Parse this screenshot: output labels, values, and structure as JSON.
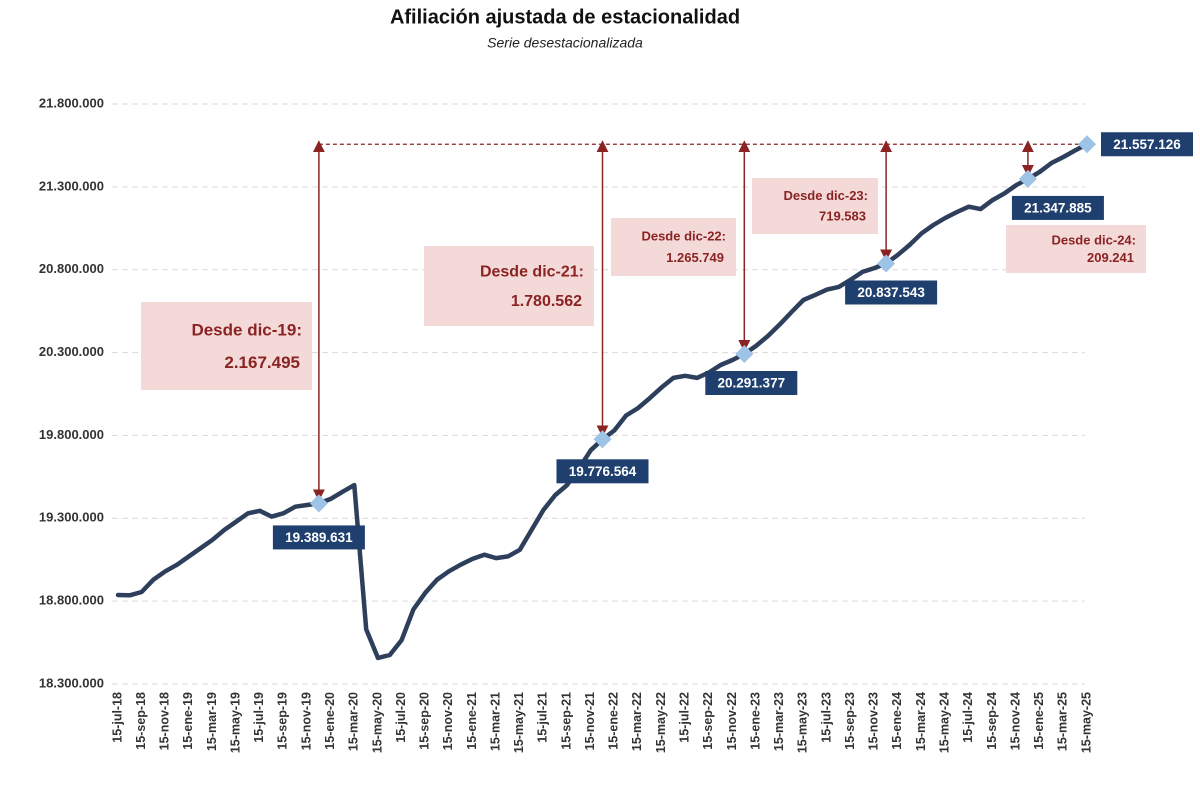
{
  "chart_data": {
    "type": "line",
    "title": "Afiliación ajustada de estacionalidad",
    "subtitle": "Serie desestacionalizada",
    "categories": [
      "15-jul-18",
      null,
      "15-sep-18",
      null,
      "15-nov-18",
      null,
      "15-ene-19",
      null,
      "15-mar-19",
      null,
      "15-may-19",
      null,
      "15-jul-19",
      null,
      "15-sep-19",
      null,
      "15-nov-19",
      null,
      "15-ene-20",
      null,
      "15-mar-20",
      null,
      "15-may-20",
      null,
      "15-jul-20",
      null,
      "15-sep-20",
      null,
      "15-nov-20",
      null,
      "15-ene-21",
      null,
      "15-mar-21",
      null,
      "15-may-21",
      null,
      "15-jul-21",
      null,
      "15-sep-21",
      null,
      "15-nov-21",
      null,
      "15-ene-22",
      null,
      "15-mar-22",
      null,
      "15-may-22",
      null,
      "15-jul-22",
      null,
      "15-sep-22",
      null,
      "15-nov-22",
      null,
      "15-ene-23",
      null,
      "15-mar-23",
      null,
      "15-may-23",
      null,
      "15-jul-23",
      null,
      "15-sep-23",
      null,
      "15-nov-23",
      null,
      "15-ene-24",
      null,
      "15-mar-24",
      null,
      "15-may-24",
      null,
      "15-jul-24",
      null,
      "15-sep-24",
      null,
      "15-nov-24",
      null,
      "15-ene-25",
      null,
      "15-mar-25",
      null,
      "15-may-25"
    ],
    "values": [
      18837000,
      18835000,
      18855000,
      18930000,
      18980000,
      19020000,
      19070000,
      19120000,
      19170000,
      19230000,
      19280000,
      19330000,
      19345000,
      19310000,
      19330000,
      19370000,
      19380000,
      19389631,
      19417000,
      19460000,
      19500000,
      18630000,
      18457000,
      18475000,
      18565000,
      18750000,
      18850000,
      18930000,
      18980000,
      19020000,
      19055000,
      19080000,
      19060000,
      19070000,
      19110000,
      19230000,
      19350000,
      19440000,
      19500000,
      19600000,
      19710000,
      19776564,
      19830000,
      19920000,
      19965000,
      20025000,
      20090000,
      20147000,
      20160000,
      20147000,
      20180000,
      20225000,
      20255000,
      20291377,
      20340000,
      20400000,
      20470000,
      20545000,
      20617000,
      20648000,
      20680000,
      20696000,
      20740000,
      20787000,
      20810000,
      20837543,
      20890000,
      20950000,
      21020000,
      21070000,
      21112000,
      21148000,
      21180000,
      21166000,
      21220000,
      21260000,
      21310000,
      21347885,
      21390000,
      21444000,
      21480000,
      21520000,
      21557126
    ],
    "value_labels": [
      null,
      null,
      null,
      null,
      null,
      null,
      null,
      null,
      null,
      null,
      null,
      null,
      null,
      null,
      null,
      null,
      null,
      "19.389.631",
      null,
      null,
      null,
      null,
      null,
      null,
      null,
      null,
      null,
      null,
      null,
      null,
      null,
      null,
      null,
      null,
      null,
      null,
      null,
      null,
      null,
      null,
      null,
      "19.776.564",
      null,
      null,
      null,
      null,
      null,
      null,
      null,
      null,
      null,
      null,
      null,
      "20.291.377",
      null,
      null,
      null,
      null,
      null,
      null,
      null,
      null,
      null,
      null,
      null,
      "20.837.543",
      null,
      null,
      null,
      null,
      null,
      null,
      null,
      null,
      null,
      null,
      null,
      "21.347.885",
      null,
      null,
      null,
      null,
      "21.557.126"
    ],
    "color": "#2e3f5c",
    "marker_color": "#9dc3e6",
    "label_color": "#1f3f6e",
    "annotation_color": "#8b2323",
    "annotations": [
      {
        "title": "Desde dic-19:",
        "value": "2.167.495"
      },
      {
        "title": "Desde dic-21:",
        "value": "1.780.562"
      },
      {
        "title": "Desde dic-22:",
        "value": "1.265.749"
      },
      {
        "title": "Desde dic-23:",
        "value": "719.583"
      },
      {
        "title": "Desde dic-24:",
        "value": "209.241"
      }
    ],
    "ylim": [
      18300000,
      21800000
    ],
    "yticks": [
      {
        "value": 18300000,
        "label": "18.300.000"
      },
      {
        "value": 18800000,
        "label": "18.800.000"
      },
      {
        "value": 19300000,
        "label": "19.300.000"
      },
      {
        "value": 19800000,
        "label": "19.800.000"
      },
      {
        "value": 20300000,
        "label": "20.300.000"
      },
      {
        "value": 20800000,
        "label": "20.800.000"
      },
      {
        "value": 21300000,
        "label": "21.300.000"
      },
      {
        "value": 21800000,
        "label": "21.800.000"
      }
    ],
    "grid": true
  }
}
